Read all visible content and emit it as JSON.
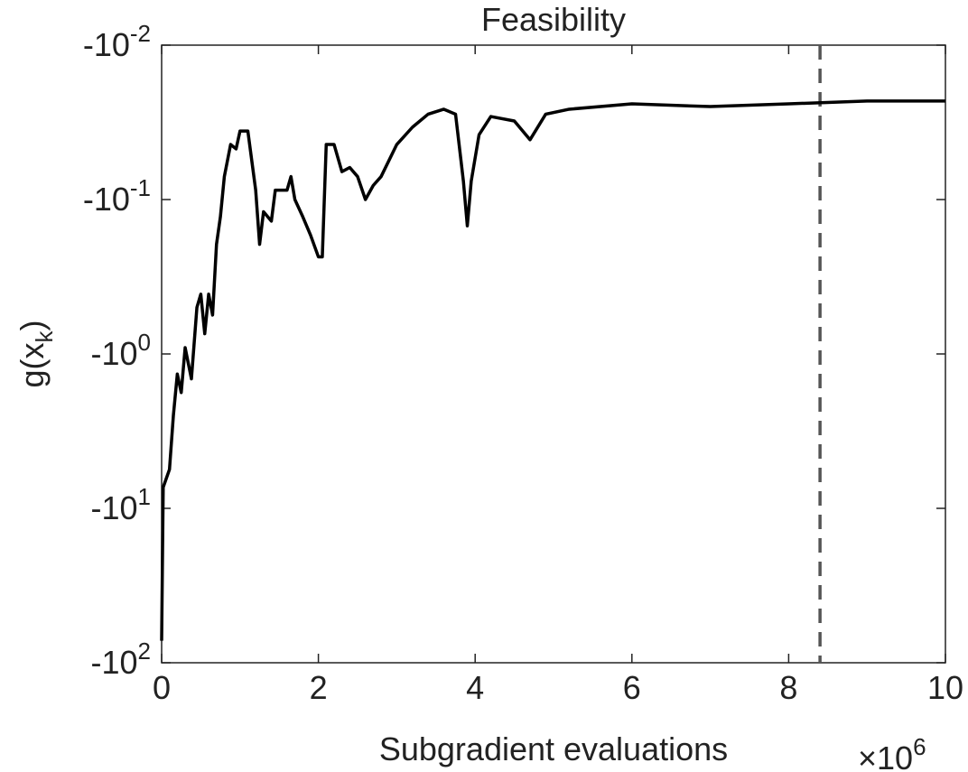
{
  "chart_data": {
    "type": "line",
    "title": "Feasibility",
    "xlabel": "Subgradient evaluations",
    "ylabel": {
      "text": "g(x",
      "subscript": "k",
      "suffix": ")"
    },
    "x_multiplier": {
      "base": "×10",
      "exponent": "6"
    },
    "xlim": [
      0,
      10
    ],
    "xticks": [
      0,
      2,
      4,
      6,
      8,
      10
    ],
    "ylim": [
      -100,
      -0.01
    ],
    "yscale": "negative-log",
    "yticks": [
      {
        "value": -0.01,
        "label": "-10",
        "exponent": "-2"
      },
      {
        "value": -0.1,
        "label": "-10",
        "exponent": "-1"
      },
      {
        "value": -1,
        "label": "-10",
        "exponent": "0"
      },
      {
        "value": -10,
        "label": "-10",
        "exponent": "1"
      },
      {
        "value": -100,
        "label": "-10",
        "exponent": "2"
      }
    ],
    "reference_line": 8.4,
    "reference_color": "#555555",
    "series": [
      {
        "color": "#000000",
        "x": [
          0,
          0.02,
          0.1,
          0.15,
          0.2,
          0.25,
          0.3,
          0.38,
          0.45,
          0.5,
          0.55,
          0.6,
          0.65,
          0.7,
          0.75,
          0.8,
          0.88,
          0.95,
          1.0,
          1.1,
          1.2,
          1.25,
          1.3,
          1.4,
          1.45,
          1.6,
          1.65,
          1.7,
          1.8,
          1.9,
          2.0,
          2.05,
          2.1,
          2.2,
          2.3,
          2.4,
          2.5,
          2.6,
          2.7,
          2.8,
          3.0,
          3.2,
          3.4,
          3.6,
          3.75,
          3.85,
          3.9,
          3.95,
          4.05,
          4.2,
          4.5,
          4.7,
          4.9,
          5.2,
          6.0,
          7.0,
          8.0,
          9.0,
          10.0
        ],
        "values": [
          -72,
          -7.3,
          -5.6,
          -2.5,
          -1.35,
          -1.78,
          -0.91,
          -1.45,
          -0.5,
          -0.41,
          -0.74,
          -0.41,
          -0.56,
          -0.195,
          -0.129,
          -0.071,
          -0.044,
          -0.047,
          -0.036,
          -0.036,
          -0.087,
          -0.195,
          -0.12,
          -0.138,
          -0.087,
          -0.087,
          -0.071,
          -0.1,
          -0.129,
          -0.17,
          -0.235,
          -0.235,
          -0.044,
          -0.044,
          -0.066,
          -0.062,
          -0.071,
          -0.1,
          -0.081,
          -0.071,
          -0.044,
          -0.034,
          -0.028,
          -0.026,
          -0.028,
          -0.076,
          -0.148,
          -0.076,
          -0.038,
          -0.029,
          -0.031,
          -0.041,
          -0.028,
          -0.026,
          -0.024,
          -0.025,
          -0.024,
          -0.023,
          -0.023
        ]
      }
    ]
  }
}
